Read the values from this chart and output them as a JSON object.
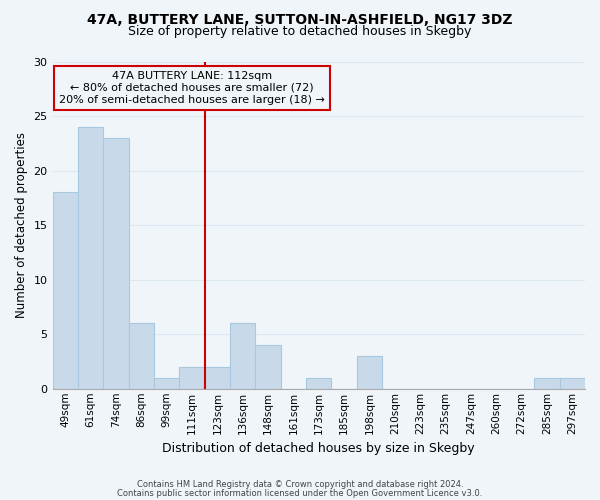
{
  "title_line1": "47A, BUTTERY LANE, SUTTON-IN-ASHFIELD, NG17 3DZ",
  "title_line2": "Size of property relative to detached houses in Skegby",
  "xlabel": "Distribution of detached houses by size in Skegby",
  "ylabel": "Number of detached properties",
  "bar_color": "#c8daea",
  "bar_edge_color": "#a8c8e0",
  "categories": [
    "49sqm",
    "61sqm",
    "74sqm",
    "86sqm",
    "99sqm",
    "111sqm",
    "123sqm",
    "136sqm",
    "148sqm",
    "161sqm",
    "173sqm",
    "185sqm",
    "198sqm",
    "210sqm",
    "223sqm",
    "235sqm",
    "247sqm",
    "260sqm",
    "272sqm",
    "285sqm",
    "297sqm"
  ],
  "values": [
    18,
    24,
    23,
    6,
    1,
    2,
    2,
    6,
    4,
    0,
    1,
    0,
    3,
    0,
    0,
    0,
    0,
    0,
    0,
    1,
    1
  ],
  "ylim": [
    0,
    30
  ],
  "yticks": [
    0,
    5,
    10,
    15,
    20,
    25,
    30
  ],
  "marker_line_index": 5,
  "marker_label_line1": "47A BUTTERY LANE: 112sqm",
  "marker_label_line2": "← 80% of detached houses are smaller (72)",
  "marker_label_line3": "20% of semi-detached houses are larger (18) →",
  "footer_line1": "Contains HM Land Registry data © Crown copyright and database right 2024.",
  "footer_line2": "Contains public sector information licensed under the Open Government Licence v3.0.",
  "red_line_color": "#cc0000",
  "grid_color": "#dce8f0",
  "background_color": "#f0f5fa",
  "fig_width": 6.0,
  "fig_height": 5.0,
  "dpi": 100
}
